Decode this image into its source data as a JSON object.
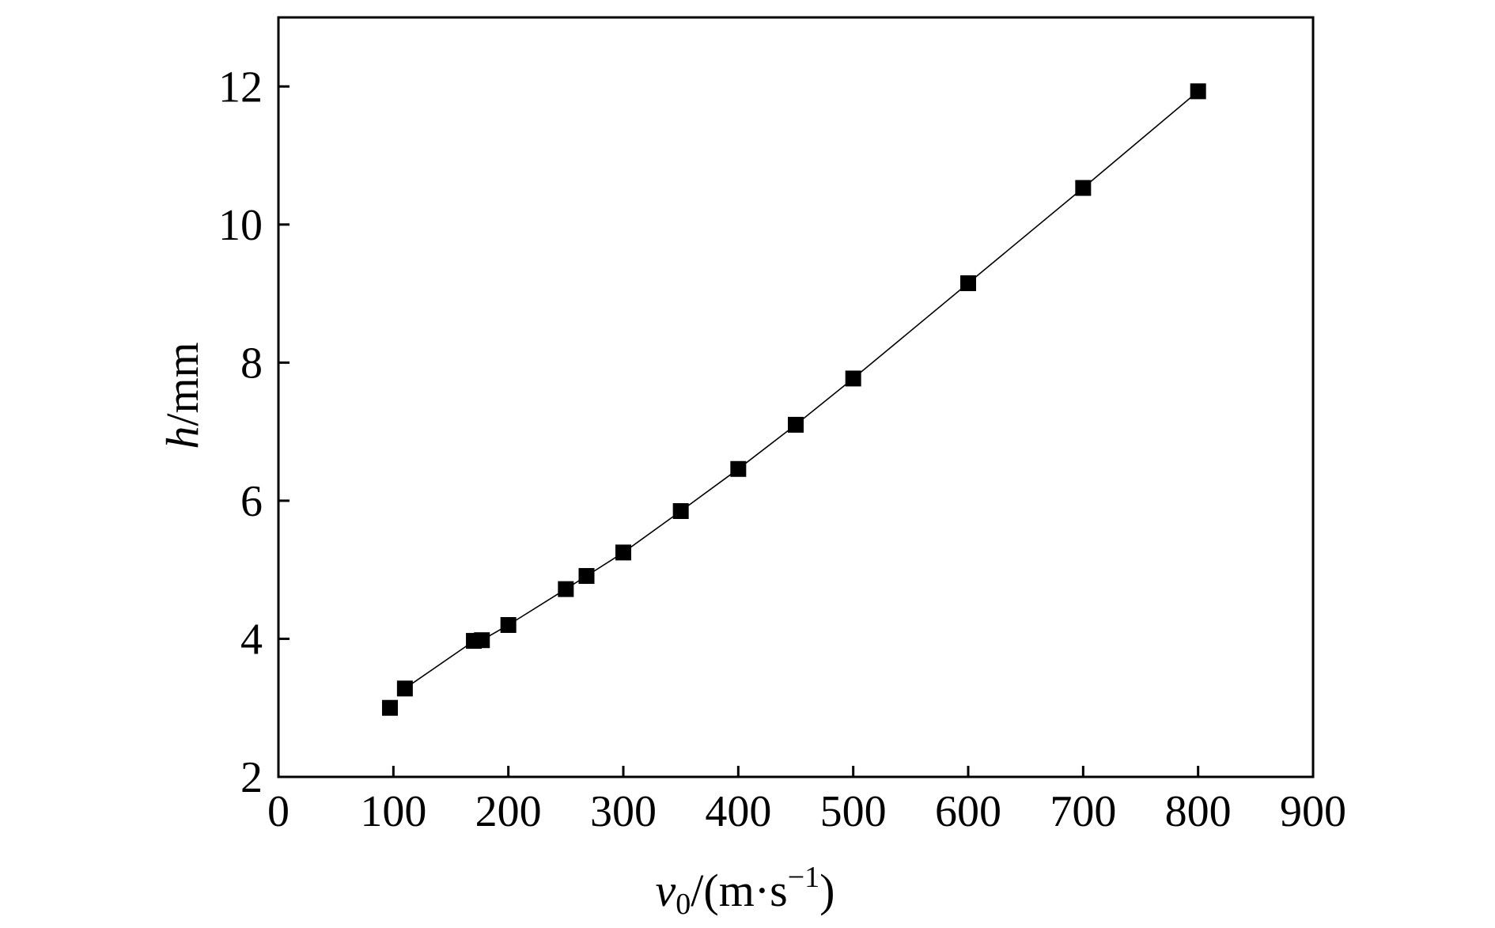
{
  "chart_data": {
    "type": "line",
    "title": "",
    "xlabel": {
      "symbol": "v",
      "subscript": "0",
      "unit": "/(m·s",
      "superscript": "−1",
      "close": ")"
    },
    "ylabel": {
      "symbol": "h",
      "unit": "/mm"
    },
    "xlim": [
      0,
      900
    ],
    "ylim": [
      2,
      13
    ],
    "xticks": [
      0,
      100,
      200,
      300,
      400,
      500,
      600,
      700,
      800,
      900
    ],
    "yticks": [
      2,
      4,
      6,
      8,
      10,
      12
    ],
    "xtick_labels": [
      "0",
      "100",
      "200",
      "300",
      "400",
      "500",
      "600",
      "700",
      "800",
      "900"
    ],
    "ytick_labels": [
      "2",
      "4",
      "6",
      "8",
      "10",
      "12"
    ],
    "grid": false,
    "legend": "none",
    "colors": {
      "marker": "#000000",
      "line": "#000000",
      "axes": "#000000"
    },
    "points": {
      "x": [
        97,
        110,
        170,
        177,
        200,
        250,
        268,
        300,
        350,
        400,
        450,
        500,
        600,
        700,
        800
      ],
      "y": [
        3.0,
        3.28,
        3.97,
        3.98,
        4.2,
        4.72,
        4.91,
        5.25,
        5.85,
        6.46,
        7.1,
        7.77,
        9.15,
        10.53,
        11.93
      ]
    },
    "fit_line": {
      "x": [
        110,
        170,
        177,
        200,
        250,
        268,
        300,
        350,
        400,
        450,
        500,
        600,
        700,
        800
      ],
      "y": [
        3.28,
        3.97,
        3.98,
        4.2,
        4.72,
        4.91,
        5.25,
        5.85,
        6.46,
        7.1,
        7.77,
        9.15,
        10.53,
        11.93
      ]
    }
  }
}
